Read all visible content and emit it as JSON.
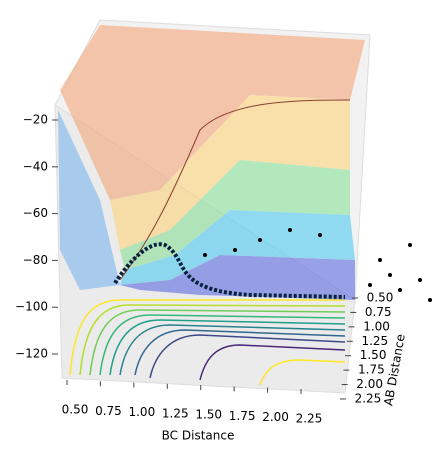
{
  "chart_data": {
    "type": "surface3d",
    "xlabel": "BC Distance",
    "ylabel": "AB Distance",
    "xticks": [
      {
        "value": 0.5,
        "label": "0.50"
      },
      {
        "value": 0.75,
        "label": "0.75"
      },
      {
        "value": 1.0,
        "label": "1.00"
      },
      {
        "value": 1.25,
        "label": "1.25"
      },
      {
        "value": 1.5,
        "label": "1.50"
      },
      {
        "value": 1.75,
        "label": "1.75"
      },
      {
        "value": 2.0,
        "label": "2.00"
      },
      {
        "value": 2.25,
        "label": "2.25"
      }
    ],
    "yticks": [
      {
        "value": 0.5,
        "label": "0.50"
      },
      {
        "value": 0.75,
        "label": "0.75"
      },
      {
        "value": 1.0,
        "label": "1.00"
      },
      {
        "value": 1.25,
        "label": "1.25"
      },
      {
        "value": 1.5,
        "label": "1.50"
      },
      {
        "value": 1.75,
        "label": "1.75"
      },
      {
        "value": 2.0,
        "label": "2.00"
      },
      {
        "value": 2.25,
        "label": "2.25"
      }
    ],
    "zticks": [
      {
        "value": -120,
        "label": "−120"
      },
      {
        "value": -100,
        "label": "−100"
      },
      {
        "value": -80,
        "label": "−80"
      },
      {
        "value": -60,
        "label": "−60"
      },
      {
        "value": -40,
        "label": "−40"
      },
      {
        "value": -20,
        "label": "−20"
      }
    ]
  }
}
